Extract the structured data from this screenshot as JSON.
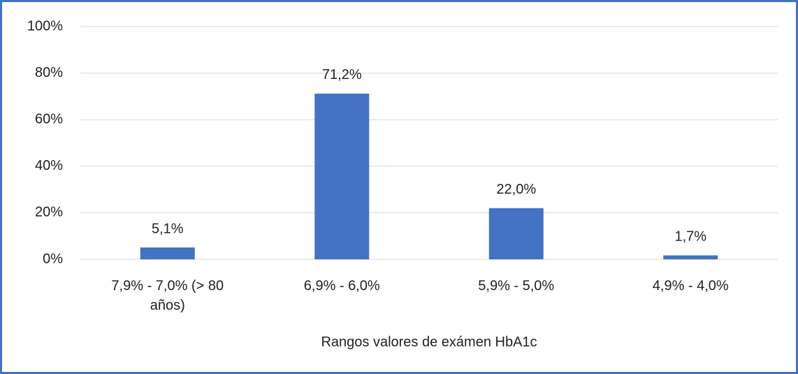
{
  "chart_data": {
    "type": "bar",
    "categories": [
      "7,9% - 7,0% (> 80 años)",
      "6,9% - 6,0%",
      "5,9% - 5,0%",
      "4,9% - 4,0%"
    ],
    "values": [
      5.1,
      71.2,
      22.0,
      1.7
    ],
    "value_labels": [
      "5,1%",
      "71,2%",
      "22,0%",
      "1,7%"
    ],
    "color": "#4472c4",
    "xlabel": "Rangos valores de exámen HbA1c",
    "ylim": [
      0,
      100
    ],
    "yticks": [
      {
        "value": 0,
        "label": "0%"
      },
      {
        "value": 20,
        "label": "20%"
      },
      {
        "value": 40,
        "label": "40%"
      },
      {
        "value": 60,
        "label": "60%"
      },
      {
        "value": 80,
        "label": "80%"
      },
      {
        "value": 100,
        "label": "100%"
      }
    ],
    "grid": true
  }
}
